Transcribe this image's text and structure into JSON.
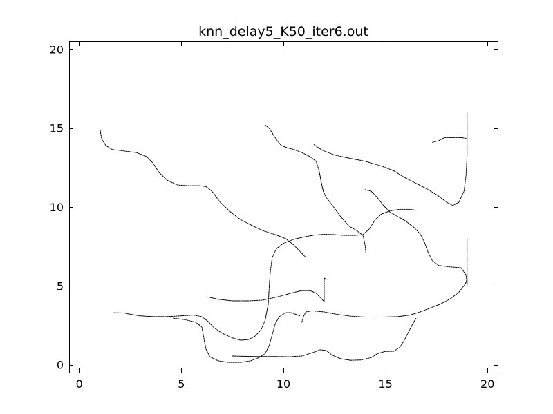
{
  "chart_data": {
    "type": "line",
    "title": "knn_delay5_K50_iter6.out",
    "xlabel": "",
    "ylabel": "",
    "xlim": [
      -0.5,
      20.5
    ],
    "ylim": [
      -0.5,
      20.5
    ],
    "xticks": [
      0,
      5,
      10,
      15,
      20
    ],
    "yticks": [
      0,
      5,
      10,
      15,
      20
    ],
    "xtick_labels": [
      "0",
      "5",
      "10",
      "15",
      "20"
    ],
    "ytick_labels": [
      "0",
      "5",
      "10",
      "15",
      "20"
    ],
    "grid": false,
    "legend": false,
    "line_color": "#000000",
    "series": [
      {
        "values": [
          [
            1.0,
            15.0
          ],
          [
            1.1,
            14.3
          ],
          [
            1.3,
            13.9
          ],
          [
            1.6,
            13.65
          ],
          [
            2.2,
            13.55
          ],
          [
            2.8,
            13.45
          ],
          [
            3.3,
            13.2
          ],
          [
            3.6,
            12.8
          ],
          [
            3.9,
            12.2
          ],
          [
            4.3,
            11.7
          ],
          [
            4.8,
            11.4
          ],
          [
            5.3,
            11.35
          ],
          [
            5.9,
            11.35
          ],
          [
            6.2,
            11.3
          ],
          [
            6.5,
            11.0
          ],
          [
            6.9,
            10.3
          ],
          [
            7.4,
            9.7
          ],
          [
            7.9,
            9.2
          ],
          [
            8.5,
            8.8
          ],
          [
            9.0,
            8.5
          ],
          [
            9.6,
            8.25
          ],
          [
            10.1,
            8.0
          ],
          [
            10.5,
            7.6
          ],
          [
            10.8,
            7.2
          ],
          [
            11.1,
            6.8
          ]
        ]
      },
      {
        "values": [
          [
            9.1,
            15.2
          ],
          [
            9.3,
            15.0
          ],
          [
            9.5,
            14.6
          ],
          [
            9.7,
            14.2
          ],
          [
            9.9,
            13.9
          ],
          [
            10.2,
            13.75
          ],
          [
            10.5,
            13.65
          ],
          [
            10.9,
            13.45
          ],
          [
            11.3,
            13.2
          ],
          [
            11.6,
            12.9
          ],
          [
            11.75,
            12.3
          ],
          [
            11.85,
            11.6
          ],
          [
            11.95,
            11.0
          ],
          [
            12.1,
            10.6
          ],
          [
            12.4,
            10.1
          ],
          [
            12.8,
            9.4
          ],
          [
            13.2,
            8.8
          ],
          [
            13.6,
            8.5
          ],
          [
            13.9,
            8.2
          ],
          [
            14.0,
            7.6
          ],
          [
            14.05,
            7.0
          ]
        ]
      },
      {
        "values": [
          [
            11.5,
            13.95
          ],
          [
            11.9,
            13.6
          ],
          [
            12.5,
            13.3
          ],
          [
            13.2,
            13.1
          ],
          [
            14.0,
            12.9
          ],
          [
            14.8,
            12.6
          ],
          [
            15.4,
            12.3
          ],
          [
            15.9,
            11.9
          ],
          [
            16.5,
            11.5
          ],
          [
            17.1,
            11.1
          ],
          [
            17.6,
            10.7
          ],
          [
            18.0,
            10.3
          ],
          [
            18.3,
            10.1
          ],
          [
            18.6,
            10.3
          ],
          [
            18.85,
            11.0
          ],
          [
            18.95,
            12.0
          ],
          [
            19.0,
            13.3
          ],
          [
            19.0,
            14.3
          ]
        ]
      },
      {
        "values": [
          [
            17.3,
            14.1
          ],
          [
            17.6,
            14.2
          ],
          [
            17.9,
            14.4
          ],
          [
            18.3,
            14.4
          ],
          [
            18.7,
            14.4
          ],
          [
            19.0,
            14.35
          ],
          [
            19.0,
            15.0
          ],
          [
            19.0,
            16.0
          ]
        ]
      },
      {
        "values": [
          [
            14.0,
            11.1
          ],
          [
            14.3,
            11.0
          ],
          [
            14.6,
            10.6
          ],
          [
            14.9,
            10.1
          ],
          [
            15.2,
            9.7
          ],
          [
            15.6,
            9.4
          ],
          [
            16.0,
            9.1
          ],
          [
            16.4,
            8.7
          ],
          [
            16.7,
            8.3
          ],
          [
            16.9,
            7.8
          ],
          [
            17.1,
            7.1
          ],
          [
            17.3,
            6.6
          ],
          [
            17.6,
            6.3
          ],
          [
            18.2,
            6.2
          ],
          [
            18.7,
            6.15
          ],
          [
            18.95,
            5.7
          ],
          [
            19.0,
            5.0
          ],
          [
            19.0,
            6.2
          ],
          [
            19.0,
            7.0
          ],
          [
            19.0,
            8.0
          ]
        ]
      },
      {
        "values": [
          [
            6.3,
            4.3
          ],
          [
            6.8,
            4.15
          ],
          [
            7.5,
            4.05
          ],
          [
            8.3,
            4.05
          ],
          [
            9.0,
            4.1
          ],
          [
            9.7,
            4.3
          ],
          [
            10.4,
            4.55
          ],
          [
            10.9,
            4.7
          ],
          [
            11.3,
            4.7
          ],
          [
            11.6,
            4.55
          ],
          [
            11.85,
            4.2
          ],
          [
            12.0,
            4.0
          ],
          [
            12.0,
            4.8
          ],
          [
            12.0,
            5.5
          ],
          [
            12.1,
            5.4
          ]
        ]
      },
      {
        "values": [
          [
            1.7,
            3.3
          ],
          [
            2.2,
            3.28
          ],
          [
            2.6,
            3.18
          ],
          [
            3.0,
            3.1
          ],
          [
            3.6,
            3.05
          ],
          [
            4.2,
            3.05
          ],
          [
            4.7,
            3.08
          ],
          [
            5.2,
            3.12
          ],
          [
            5.6,
            3.15
          ],
          [
            6.0,
            3.05
          ],
          [
            6.3,
            2.75
          ],
          [
            6.6,
            2.35
          ],
          [
            7.0,
            2.0
          ],
          [
            7.5,
            1.7
          ],
          [
            7.9,
            1.55
          ],
          [
            8.3,
            1.6
          ],
          [
            8.6,
            1.8
          ],
          [
            8.9,
            2.2
          ],
          [
            9.1,
            2.8
          ],
          [
            9.25,
            3.8
          ],
          [
            9.3,
            4.8
          ],
          [
            9.35,
            5.8
          ],
          [
            9.45,
            6.8
          ],
          [
            9.65,
            7.35
          ],
          [
            10.0,
            7.7
          ],
          [
            10.5,
            7.95
          ],
          [
            11.0,
            8.1
          ],
          [
            11.5,
            8.22
          ],
          [
            12.0,
            8.27
          ],
          [
            12.5,
            8.25
          ],
          [
            13.0,
            8.2
          ],
          [
            13.5,
            8.2
          ],
          [
            13.9,
            8.25
          ],
          [
            14.2,
            8.6
          ],
          [
            14.5,
            9.2
          ],
          [
            14.8,
            9.55
          ],
          [
            15.2,
            9.75
          ],
          [
            15.7,
            9.85
          ],
          [
            16.2,
            9.85
          ],
          [
            16.5,
            9.8
          ]
        ]
      },
      {
        "values": [
          [
            4.6,
            2.95
          ],
          [
            5.2,
            2.85
          ],
          [
            5.7,
            2.7
          ],
          [
            6.0,
            2.4
          ],
          [
            6.1,
            1.7
          ],
          [
            6.2,
            1.0
          ],
          [
            6.4,
            0.5
          ],
          [
            6.8,
            0.25
          ],
          [
            7.3,
            0.15
          ],
          [
            7.9,
            0.15
          ],
          [
            8.4,
            0.25
          ],
          [
            8.8,
            0.45
          ],
          [
            9.1,
            0.7
          ],
          [
            9.3,
            1.2
          ],
          [
            9.45,
            1.9
          ],
          [
            9.6,
            2.6
          ],
          [
            9.8,
            3.05
          ],
          [
            10.1,
            3.3
          ],
          [
            10.4,
            3.3
          ],
          [
            10.6,
            3.2
          ],
          [
            10.8,
            3.1
          ]
        ]
      },
      {
        "values": [
          [
            7.5,
            0.55
          ],
          [
            8.5,
            0.52
          ],
          [
            9.5,
            0.52
          ],
          [
            10.3,
            0.5
          ],
          [
            10.9,
            0.55
          ],
          [
            11.4,
            0.75
          ],
          [
            11.8,
            0.95
          ],
          [
            12.1,
            0.9
          ],
          [
            12.4,
            0.6
          ],
          [
            12.8,
            0.38
          ],
          [
            13.3,
            0.28
          ],
          [
            13.8,
            0.3
          ],
          [
            14.3,
            0.45
          ],
          [
            14.6,
            0.7
          ],
          [
            15.0,
            0.85
          ],
          [
            15.4,
            0.85
          ],
          [
            15.7,
            1.1
          ],
          [
            15.9,
            1.5
          ],
          [
            16.1,
            2.0
          ],
          [
            16.3,
            2.5
          ],
          [
            16.5,
            2.95
          ]
        ]
      },
      {
        "values": [
          [
            10.9,
            2.7
          ],
          [
            11.0,
            3.1
          ],
          [
            11.1,
            3.35
          ],
          [
            11.4,
            3.42
          ],
          [
            12.0,
            3.35
          ],
          [
            12.6,
            3.2
          ],
          [
            13.3,
            3.08
          ],
          [
            14.0,
            3.02
          ],
          [
            14.8,
            3.02
          ],
          [
            15.6,
            3.05
          ],
          [
            16.2,
            3.15
          ],
          [
            16.7,
            3.35
          ],
          [
            17.2,
            3.6
          ],
          [
            17.7,
            3.85
          ],
          [
            18.2,
            4.2
          ],
          [
            18.6,
            4.6
          ],
          [
            18.9,
            5.1
          ],
          [
            19.0,
            5.4
          ],
          [
            19.0,
            5.1
          ]
        ]
      }
    ]
  }
}
